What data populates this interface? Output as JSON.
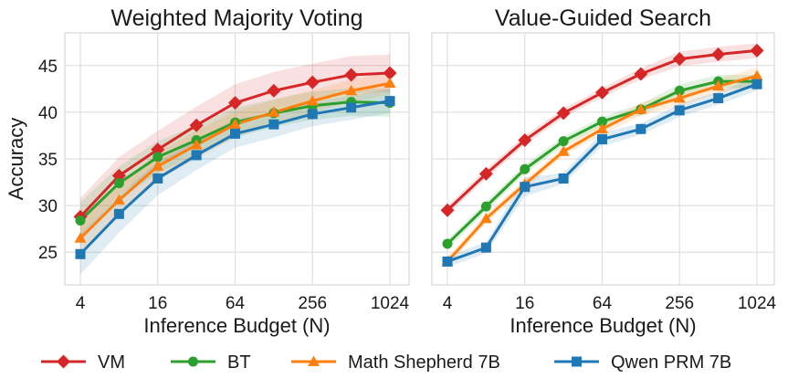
{
  "chart_data": [
    {
      "type": "line",
      "title": "Weighted Majority Voting",
      "xlabel": "Inference Budget (N)",
      "ylabel": "Accuracy",
      "x_scale": "log2",
      "x": [
        4,
        8,
        16,
        32,
        64,
        128,
        256,
        512,
        1024
      ],
      "xticks": [
        4,
        16,
        64,
        256,
        1024
      ],
      "xtick_labels": [
        "4",
        "16",
        "64",
        "256",
        "1024"
      ],
      "yticks": [
        25,
        30,
        35,
        40,
        45
      ],
      "ytick_labels": [
        "25",
        "30",
        "35",
        "40",
        "45"
      ],
      "ylim": [
        21.5,
        48.5
      ],
      "grid": true,
      "series": [
        {
          "name": "VM",
          "color": "#d62728",
          "marker": "diamond",
          "values": [
            28.8,
            33.2,
            36.0,
            38.6,
            41.0,
            42.3,
            43.2,
            44.0,
            44.2
          ],
          "lower": [
            26.8,
            31.2,
            34.0,
            36.6,
            39.0,
            40.3,
            41.2,
            42.0,
            42.2
          ],
          "upper": [
            30.8,
            35.2,
            38.0,
            40.6,
            43.0,
            44.3,
            45.2,
            46.0,
            46.2
          ]
        },
        {
          "name": "BT",
          "color": "#2ca02c",
          "marker": "circle",
          "values": [
            28.4,
            32.4,
            35.2,
            37.0,
            38.9,
            39.9,
            40.7,
            41.1,
            41.0
          ],
          "lower": [
            26.4,
            30.6,
            33.5,
            35.4,
            37.3,
            38.4,
            39.2,
            39.6,
            39.5
          ],
          "upper": [
            30.4,
            34.2,
            36.9,
            38.6,
            40.5,
            41.4,
            42.2,
            42.6,
            42.5
          ]
        },
        {
          "name": "Math Shepherd 7B",
          "color": "#ff7f0e",
          "marker": "triangle",
          "values": [
            26.5,
            30.6,
            34.2,
            36.5,
            38.7,
            40.0,
            41.2,
            42.3,
            43.1
          ],
          "lower": [
            24.8,
            29.0,
            32.7,
            35.0,
            37.3,
            38.7,
            40.0,
            41.1,
            41.9
          ],
          "upper": [
            28.2,
            32.2,
            35.7,
            38.0,
            40.1,
            41.3,
            42.4,
            43.5,
            44.3
          ]
        },
        {
          "name": "Qwen PRM 7B",
          "color": "#1f77b4",
          "marker": "square",
          "values": [
            24.8,
            29.1,
            32.9,
            35.4,
            37.7,
            38.7,
            39.8,
            40.5,
            41.2
          ],
          "lower": [
            22.6,
            27.1,
            31.1,
            33.8,
            36.2,
            37.3,
            38.5,
            39.2,
            39.9
          ],
          "upper": [
            27.0,
            31.1,
            34.7,
            37.0,
            39.2,
            40.1,
            41.1,
            41.8,
            42.5
          ]
        }
      ]
    },
    {
      "type": "line",
      "title": "Value-Guided Search",
      "xlabel": "Inference Budget (N)",
      "ylabel": "",
      "x_scale": "log2",
      "x": [
        4,
        8,
        16,
        32,
        64,
        128,
        256,
        512,
        1024
      ],
      "xticks": [
        4,
        16,
        64,
        256,
        1024
      ],
      "xtick_labels": [
        "4",
        "16",
        "64",
        "256",
        "1024"
      ],
      "yticks": [
        25,
        30,
        35,
        40,
        45
      ],
      "ylim": [
        21.5,
        48.5
      ],
      "grid": true,
      "series": [
        {
          "name": "VM",
          "color": "#d62728",
          "marker": "diamond",
          "values": [
            29.5,
            33.4,
            37.0,
            39.9,
            42.1,
            44.1,
            45.7,
            46.2,
            46.6
          ],
          "lower": [
            29.0,
            32.9,
            36.5,
            39.4,
            41.6,
            43.5,
            44.9,
            45.4,
            45.8
          ],
          "upper": [
            30.0,
            33.9,
            37.5,
            40.4,
            42.6,
            44.7,
            46.5,
            47.0,
            47.4
          ]
        },
        {
          "name": "BT",
          "color": "#2ca02c",
          "marker": "circle",
          "values": [
            25.9,
            29.9,
            33.9,
            36.9,
            39.0,
            40.3,
            42.3,
            43.3,
            43.3
          ],
          "lower": [
            25.4,
            29.4,
            33.4,
            36.4,
            38.5,
            39.7,
            41.6,
            42.6,
            42.6
          ],
          "upper": [
            26.4,
            30.4,
            34.4,
            37.4,
            39.5,
            40.9,
            43.0,
            44.0,
            44.0
          ]
        },
        {
          "name": "Math Shepherd 7B",
          "color": "#ff7f0e",
          "marker": "triangle",
          "values": [
            24.0,
            28.6,
            32.3,
            35.8,
            38.2,
            40.3,
            41.5,
            42.8,
            43.9
          ],
          "lower": [
            23.5,
            28.1,
            31.8,
            35.3,
            37.6,
            39.6,
            40.7,
            42.0,
            43.0
          ],
          "upper": [
            24.5,
            29.1,
            32.8,
            36.3,
            38.8,
            41.0,
            42.3,
            43.6,
            44.8
          ]
        },
        {
          "name": "Qwen PRM 7B",
          "color": "#1f77b4",
          "marker": "square",
          "values": [
            24.0,
            25.5,
            32.0,
            32.9,
            37.1,
            38.2,
            40.2,
            41.5,
            43.0
          ],
          "lower": [
            23.4,
            24.9,
            31.0,
            32.3,
            36.4,
            37.6,
            39.5,
            40.8,
            42.3
          ],
          "upper": [
            24.6,
            26.1,
            33.0,
            33.5,
            37.8,
            38.8,
            40.9,
            42.2,
            43.7
          ]
        }
      ]
    }
  ],
  "legend": {
    "placement": "bottom",
    "items": [
      {
        "label": "VM",
        "color": "#d62728",
        "marker": "diamond"
      },
      {
        "label": "BT",
        "color": "#2ca02c",
        "marker": "circle"
      },
      {
        "label": "Math Shepherd 7B",
        "color": "#ff7f0e",
        "marker": "triangle"
      },
      {
        "label": "Qwen PRM 7B",
        "color": "#1f77b4",
        "marker": "square"
      }
    ]
  }
}
